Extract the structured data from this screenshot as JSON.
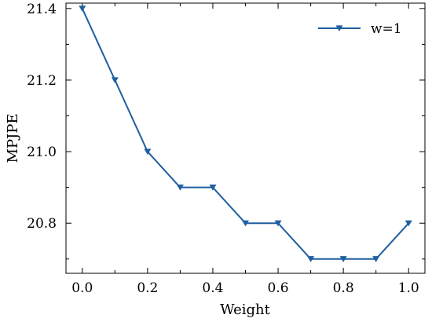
{
  "chart_data": {
    "type": "line",
    "title": "",
    "xlabel": "Weight",
    "ylabel": "MPJPE",
    "xlim": [
      -0.05,
      1.05
    ],
    "ylim": [
      20.66,
      21.415
    ],
    "xticks": [
      0.0,
      0.2,
      0.4,
      0.6,
      0.8,
      1.0
    ],
    "xtick_labels": [
      "0.0",
      "0.2",
      "0.4",
      "0.6",
      "0.8",
      "1.0"
    ],
    "yticks": [
      20.8,
      21.0,
      21.2,
      21.4
    ],
    "ytick_labels": [
      "20.8",
      "21.0",
      "21.2",
      "21.4"
    ],
    "grid": false,
    "legend_position": "top-right",
    "series": [
      {
        "name": "w=1",
        "color": "#1f5fa0",
        "marker": "triangle-down",
        "x": [
          0.0,
          0.1,
          0.2,
          0.3,
          0.4,
          0.5,
          0.6,
          0.7,
          0.8,
          0.9,
          1.0
        ],
        "y": [
          21.4,
          21.2,
          21.0,
          20.9,
          20.9,
          20.8,
          20.8,
          20.7,
          20.7,
          20.7,
          20.8
        ]
      }
    ]
  }
}
